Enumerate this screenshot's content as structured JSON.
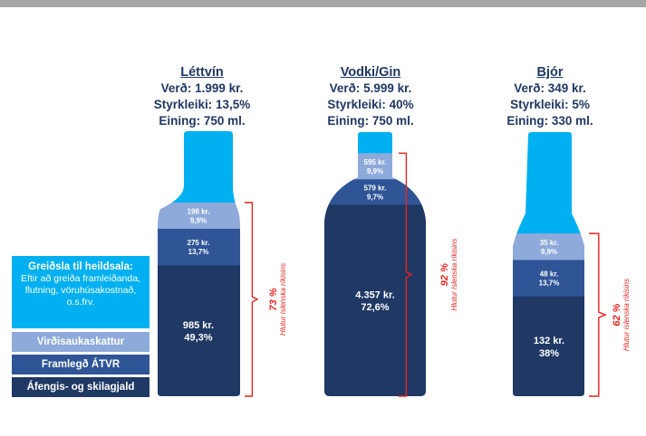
{
  "chart_data": {
    "type": "bar",
    "categories": [
      "Léttvín",
      "Vodki/Gin",
      "Bjór"
    ],
    "products": [
      {
        "name": "Léttvín",
        "price": "Verð: 1.999 kr.",
        "strength": "Styrkleiki: 13,5%",
        "unit": "Eining: 750 ml.",
        "segments": [
          {
            "key": "producer",
            "value": 537,
            "pct": 26.9,
            "label": "",
            "pct_label": ""
          },
          {
            "key": "vat",
            "value": 198,
            "pct": 9.9,
            "label": "198 kr.",
            "pct_label": "9,9%"
          },
          {
            "key": "atvr",
            "value": 275,
            "pct": 13.7,
            "label": "275 kr.",
            "pct_label": "13,7%"
          },
          {
            "key": "tax",
            "value": 985,
            "pct": 49.3,
            "label": "985 kr.",
            "pct_label": "49,3%"
          }
        ],
        "state_share": "73 %",
        "state_caption": "Hlutur íslenska ríkisins"
      },
      {
        "name": "Vodki/Gin",
        "price": "Verð: 5.999 kr.",
        "strength": "Styrkleiki: 40%",
        "unit": "Eining: 750 ml.",
        "segments": [
          {
            "key": "producer",
            "value": 480,
            "pct": 8.0,
            "label": "",
            "pct_label": ""
          },
          {
            "key": "vat",
            "value": 595,
            "pct": 9.9,
            "label": "595 kr.",
            "pct_label": "9,9%"
          },
          {
            "key": "atvr",
            "value": 579,
            "pct": 9.7,
            "label": "579 kr.",
            "pct_label": "9,7%"
          },
          {
            "key": "tax",
            "value": 4357,
            "pct": 72.6,
            "label": "4.357 kr.",
            "pct_label": "72,6%"
          }
        ],
        "state_share": "92 %",
        "state_caption": "Hlutur íslenska ríkisins"
      },
      {
        "name": "Bjór",
        "price": "Verð: 349 kr.",
        "strength": "Styrkleiki: 5%",
        "unit": "Eining: 330 ml.",
        "segments": [
          {
            "key": "producer",
            "value": 134,
            "pct": 38.4,
            "label": "",
            "pct_label": ""
          },
          {
            "key": "vat",
            "value": 35,
            "pct": 9.9,
            "label": "35 kr.",
            "pct_label": "9,9%"
          },
          {
            "key": "atvr",
            "value": 48,
            "pct": 13.7,
            "label": "48 kr.",
            "pct_label": "13,7%"
          },
          {
            "key": "tax",
            "value": 132,
            "pct": 38,
            "label": "132 kr.",
            "pct_label": "38%"
          }
        ],
        "state_share": "62 %",
        "state_caption": "Hlutur íslenska ríkisins"
      }
    ]
  },
  "legend": {
    "producer_title": "Greiðsla til heildsala:",
    "producer_text": "Eftir að greiða framleiðanda, flutning, vöruhúsakostnað, o.s.frv.",
    "vat": "Virðisaukaskattur",
    "atvr": "Framlegð ÁTVR",
    "tax": "Áfengis- og skilagjald"
  },
  "colors": {
    "producer": "#00b0f0",
    "vat": "#8eaadb",
    "atvr": "#2f5597",
    "tax": "#1f3864",
    "bracket": "#e8231e",
    "heading": "#1f3864"
  }
}
